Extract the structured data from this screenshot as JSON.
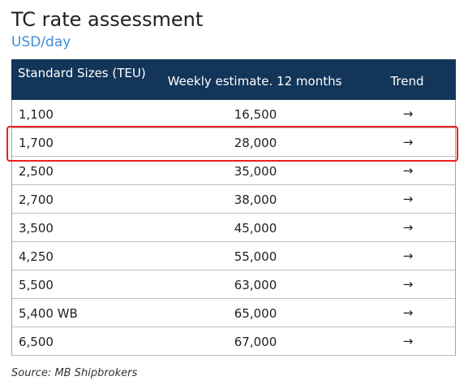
{
  "title": "TC rate assessment",
  "subtitle": "USD/day",
  "source": "Source: MB Shipbrokers",
  "colors": {
    "header_bg": "#123559",
    "subtitle": "#3e8ed8",
    "highlight": "#e8221b"
  },
  "chart_data": {
    "type": "table",
    "title": "TC rate assessment",
    "subtitle": "USD/day",
    "columns": [
      "Standard Sizes (TEU)",
      "Weekly estimate. 12 months",
      "Trend"
    ],
    "rows": [
      {
        "size": "1,100",
        "estimate": "16,500",
        "trend": "→"
      },
      {
        "size": "1,700",
        "estimate": "28,000",
        "trend": "→"
      },
      {
        "size": "2,500",
        "estimate": "35,000",
        "trend": "→"
      },
      {
        "size": "2,700",
        "estimate": "38,000",
        "trend": "→"
      },
      {
        "size": "3,500",
        "estimate": "45,000",
        "trend": "→"
      },
      {
        "size": "4,250",
        "estimate": "55,000",
        "trend": "→"
      },
      {
        "size": "5,500",
        "estimate": "63,000",
        "trend": "→"
      },
      {
        "size": "5,400 WB",
        "estimate": "65,000",
        "trend": "→"
      },
      {
        "size": "6,500",
        "estimate": "67,000",
        "trend": "→"
      }
    ],
    "highlighted_row": 1
  }
}
